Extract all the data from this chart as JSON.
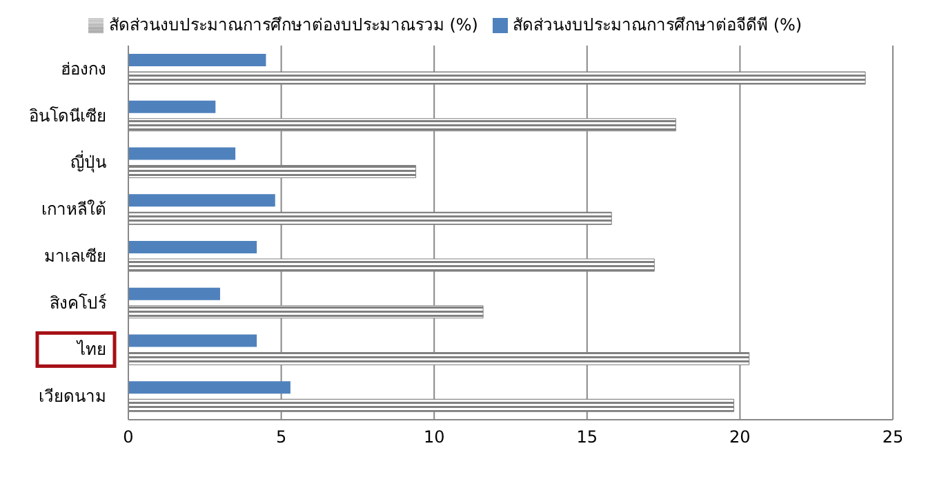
{
  "chart_data": {
    "type": "bar",
    "orientation": "horizontal",
    "categories": [
      "ฮ่องกง",
      "อินโดนีเซีย",
      "ญี่ปุ่น",
      "เกาหลีใต้",
      "มาเลเซีย",
      "สิงคโปร์",
      "ไทย",
      "เวียดนาม"
    ],
    "series": [
      {
        "name": "สัดส่วนงบประมาณการศึกษาต่อจีดีพี (%)",
        "color": "#4f81bd",
        "values": [
          4.5,
          2.85,
          3.5,
          4.8,
          4.2,
          3.0,
          4.2,
          5.3
        ]
      },
      {
        "name": "สัดส่วนงบประมาณการศึกษาต่องบประมาณรวม (%)",
        "color": "#808080",
        "values": [
          24.1,
          17.9,
          9.4,
          15.8,
          17.2,
          11.6,
          20.3,
          19.8
        ]
      }
    ],
    "xlim": [
      0,
      25
    ],
    "xticks": [
      0,
      5,
      10,
      15,
      20,
      25
    ],
    "grid": "x",
    "legend": "top"
  }
}
